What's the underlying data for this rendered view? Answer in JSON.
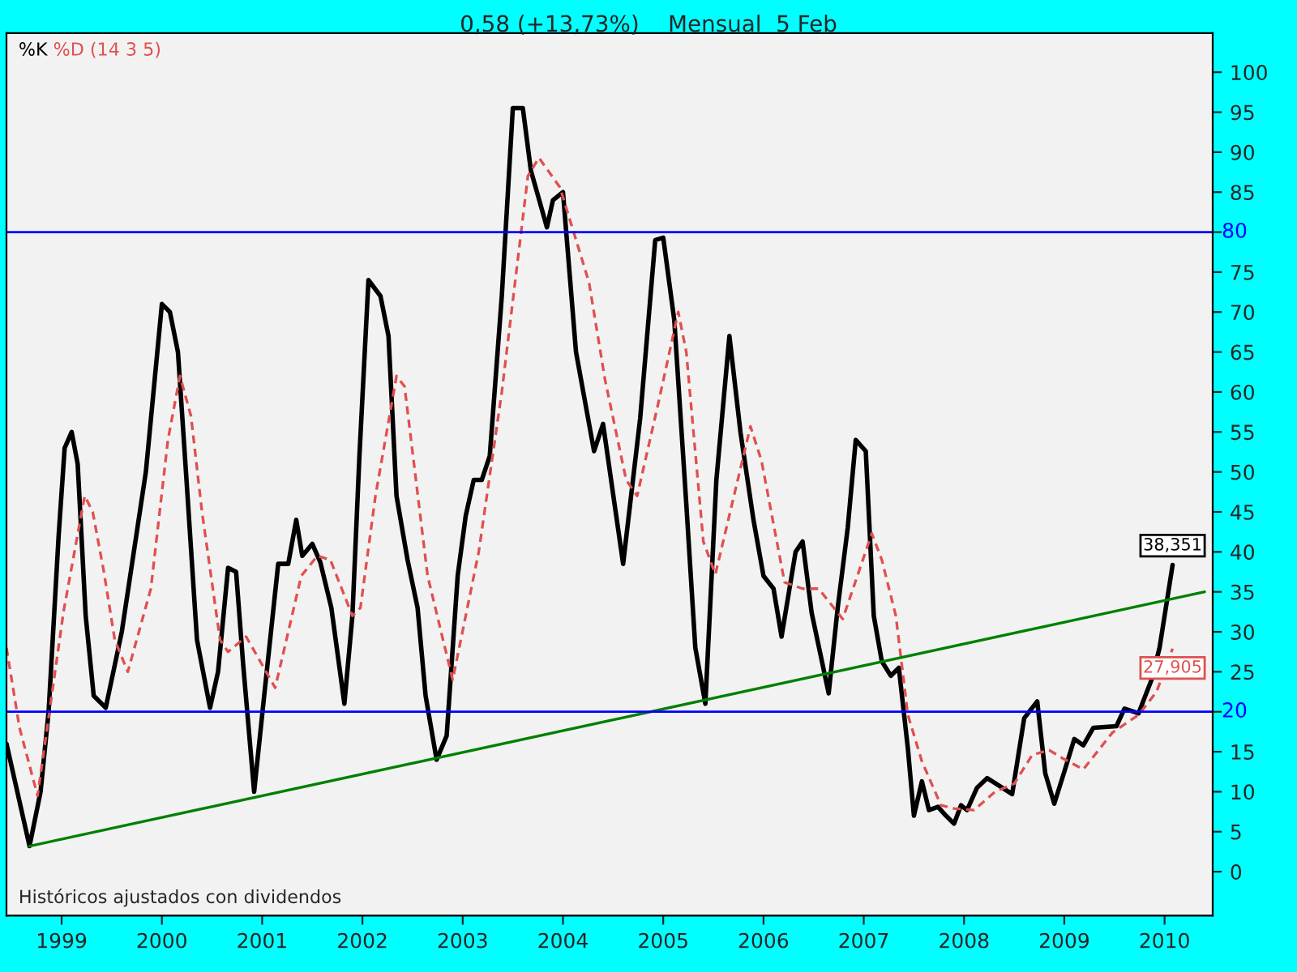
{
  "chart_data": {
    "type": "line",
    "title": "0,58 (+13,73%)    Mensual  5 Feb",
    "annotations": [
      "Históricos ajustados con dividendos",
      {
        "text": "38,351",
        "x": 2010.08,
        "y": 38.351
      },
      {
        "text": "27,905",
        "x": 2010.08,
        "y": 27.905
      }
    ],
    "xlim": [
      1998.45,
      2010.48
    ],
    "xticks": [
      1999,
      2000,
      2001,
      2002,
      2003,
      2004,
      2005,
      2006,
      2007,
      2008,
      2009,
      2010
    ],
    "ylim": [
      -5.5,
      104.9
    ],
    "yticks": [
      0,
      5,
      10,
      15,
      {
        "value": 20,
        "label": null
      },
      25,
      30,
      35,
      40,
      45,
      50,
      55,
      60,
      65,
      70,
      75,
      {
        "value": 80,
        "label": null
      },
      85,
      90,
      95,
      100
    ],
    "grid": false,
    "legend": "top left",
    "series": [
      {
        "name": "%K",
        "color": "#000000",
        "line_style": "solid",
        "x": [
          1998.45,
          1998.68,
          1998.79,
          1998.87,
          1998.97,
          1999.03,
          1999.1,
          1999.16,
          1999.24,
          1999.32,
          1999.44,
          1999.6,
          1999.84,
          2000.0,
          2000.08,
          2000.16,
          2000.24,
          2000.35,
          2000.48,
          2000.56,
          2000.66,
          2000.74,
          2000.81,
          2000.92,
          2001.02,
          2001.16,
          2001.26,
          2001.34,
          2001.4,
          2001.5,
          2001.58,
          2001.69,
          2001.82,
          2001.9,
          2001.97,
          2002.06,
          2002.18,
          2002.26,
          2002.34,
          2002.45,
          2002.55,
          2002.63,
          2002.74,
          2002.84,
          2002.95,
          2003.03,
          2003.11,
          2003.19,
          2003.27,
          2003.39,
          2003.5,
          2003.6,
          2003.68,
          2003.84,
          2003.9,
          2004.0,
          2004.13,
          2004.31,
          2004.4,
          2004.6,
          2004.77,
          2004.92,
          2005.0,
          2005.11,
          2005.23,
          2005.32,
          2005.42,
          2005.53,
          2005.66,
          2005.77,
          2005.9,
          2006.0,
          2006.1,
          2006.18,
          2006.32,
          2006.39,
          2006.48,
          2006.65,
          2006.74,
          2006.84,
          2006.92,
          2007.02,
          2007.1,
          2007.18,
          2007.27,
          2007.35,
          2007.44,
          2007.5,
          2007.58,
          2007.65,
          2007.74,
          2007.82,
          2007.9,
          2007.97,
          2008.03,
          2008.13,
          2008.23,
          2008.32,
          2008.48,
          2008.6,
          2008.73,
          2008.81,
          2008.9,
          2009.0,
          2009.1,
          2009.19,
          2009.29,
          2009.52,
          2009.6,
          2009.74,
          2009.87,
          2009.95,
          2010.08
        ],
        "values": [
          16,
          3.2,
          10,
          20,
          42,
          53,
          55,
          51,
          32,
          22,
          20.5,
          30,
          50,
          71,
          70,
          65,
          50,
          29,
          20.5,
          25,
          38,
          37.5,
          26,
          10,
          22,
          38.5,
          38.5,
          44,
          39.5,
          41,
          38.7,
          33,
          21,
          32,
          52,
          74,
          72,
          67,
          47,
          39,
          33,
          22,
          14,
          17,
          37,
          44.5,
          49,
          49,
          52,
          72,
          95.5,
          95.5,
          87.7,
          80.6,
          84,
          85,
          65,
          52.6,
          56,
          38.5,
          56.7,
          79,
          79.3,
          69,
          46,
          28,
          21,
          49,
          67,
          55,
          44,
          37,
          35.4,
          29.4,
          40,
          41.3,
          32.4,
          22.3,
          33,
          43,
          54,
          52.6,
          32,
          26.3,
          24.5,
          25.5,
          15.4,
          7,
          11.3,
          7.7,
          8.1,
          7,
          6,
          8.3,
          7.7,
          10.5,
          11.7,
          11,
          9.7,
          19.2,
          21.3,
          12.3,
          8.5,
          12.5,
          16.6,
          15.8,
          18,
          18.2,
          20.4,
          19.8,
          24,
          28,
          38.351
        ]
      },
      {
        "name": "%D (14 3 5)",
        "color": "#e05050",
        "line_style": "dashed",
        "x": [
          1998.45,
          1998.58,
          1998.76,
          1999.02,
          1999.23,
          1999.31,
          1999.42,
          1999.53,
          1999.66,
          1999.89,
          2000.06,
          2000.18,
          2000.29,
          2000.4,
          2000.58,
          2000.66,
          2000.84,
          2001.13,
          2001.39,
          2001.55,
          2001.68,
          2001.9,
          2001.98,
          2002.13,
          2002.34,
          2002.42,
          2002.65,
          2002.9,
          2003.16,
          2003.39,
          2003.65,
          2003.76,
          2003.97,
          2004.26,
          2004.42,
          2004.63,
          2004.74,
          2004.94,
          2005.15,
          2005.23,
          2005.4,
          2005.52,
          2005.87,
          2005.98,
          2006.21,
          2006.39,
          2006.55,
          2006.79,
          2007.08,
          2007.18,
          2007.32,
          2007.44,
          2007.58,
          2007.77,
          2007.9,
          2008.1,
          2008.31,
          2008.5,
          2008.68,
          2008.85,
          2008.98,
          2009.19,
          2009.48,
          2009.74,
          2009.92,
          2010.08
        ],
        "values": [
          28,
          18,
          9.5,
          32.6,
          47,
          45,
          37.6,
          29,
          25,
          35.4,
          54,
          62,
          57,
          45,
          29,
          27.5,
          29.4,
          23,
          37,
          39.5,
          39,
          32,
          33,
          47,
          62,
          60.7,
          37,
          24,
          40,
          60,
          87,
          89.3,
          85.6,
          73.7,
          61.5,
          49,
          47,
          58,
          70,
          65,
          41.3,
          37.2,
          55.7,
          51.4,
          36.2,
          35.4,
          35.4,
          31.6,
          42.3,
          39,
          32,
          19.6,
          13.8,
          8.3,
          7.9,
          7.7,
          10,
          11,
          14.6,
          15.2,
          14.2,
          12.8,
          17.4,
          19.6,
          22.5,
          27.905
        ]
      },
      {
        "type": "line",
        "color": "#008000",
        "line_style": "solid",
        "x": [
          1998.68,
          2010.4
        ],
        "values": [
          3.2,
          35
        ]
      }
    ],
    "ref_lines": [
      {
        "axis": "y",
        "value": 80,
        "label": "80",
        "color": "#0000ff"
      },
      {
        "axis": "y",
        "value": 20,
        "label": "20",
        "color": "#0000ff"
      }
    ]
  }
}
